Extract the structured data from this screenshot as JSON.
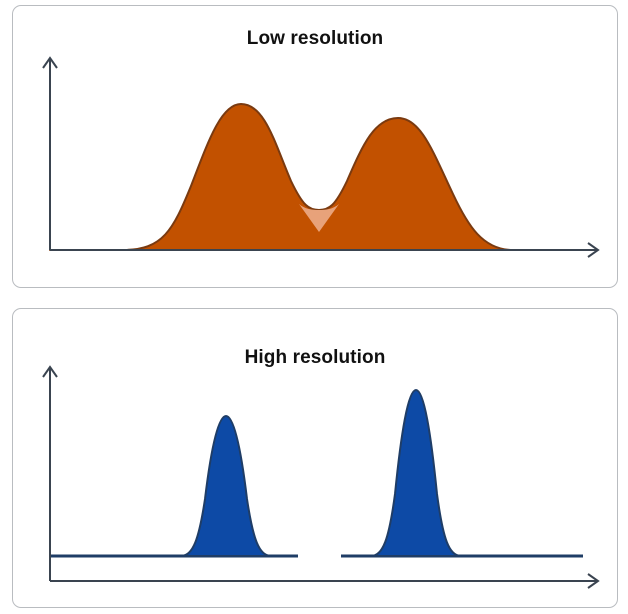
{
  "panels": [
    {
      "title": "Low resolution",
      "fill_color": "#c25100",
      "overlap_color": "#e8a27a",
      "peaks": 2
    },
    {
      "title": "High resolution",
      "fill_color": "#0d4aa6",
      "line_color": "#1f3d66",
      "peaks": 2
    }
  ],
  "colors": {
    "axis": "#3a4450",
    "border": "#b9bcc0"
  }
}
